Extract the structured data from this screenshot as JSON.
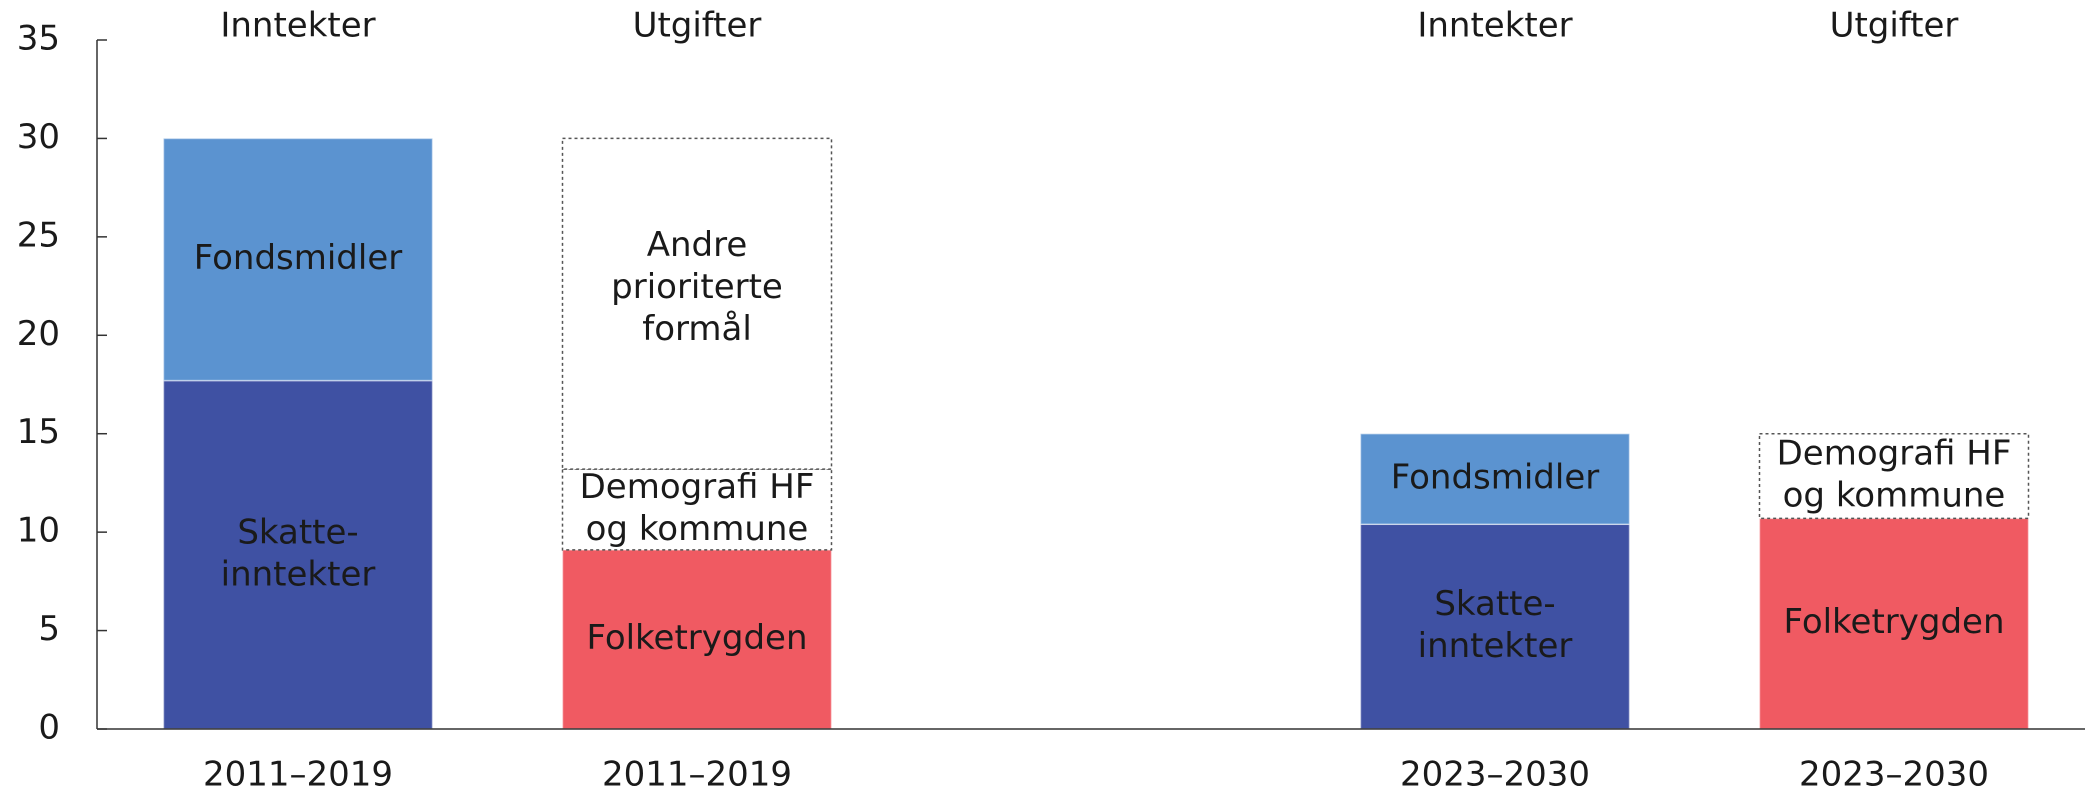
{
  "chart_data": {
    "type": "stacked_bar",
    "ylim": [
      0,
      35
    ],
    "yticks": [
      0,
      5,
      10,
      15,
      20,
      25,
      30,
      35
    ],
    "bars": [
      {
        "category": "2011–2019",
        "group_label": "Inntekter",
        "segments": [
          {
            "label": [
              "Skatte-",
              "inntekter"
            ],
            "value": 17.7,
            "color": "#3f51a3",
            "style": "solid"
          },
          {
            "label": [
              "Fondsmidler"
            ],
            "value": 12.3,
            "color": "#5b93d0",
            "style": "solid"
          }
        ]
      },
      {
        "category": "2011–2019",
        "group_label": "Utgifter",
        "segments": [
          {
            "label": [
              "Folketrygden"
            ],
            "value": 9.1,
            "color": "#f05a62",
            "style": "solid"
          },
          {
            "label": [
              "Demografi HF",
              "og kommune"
            ],
            "value": 4.1,
            "color": "#ffffff",
            "style": "dotted"
          },
          {
            "label": [
              "Andre",
              "prioriterte",
              "formål"
            ],
            "value": 16.8,
            "color": "#ffffff",
            "style": "dotted"
          }
        ]
      },
      {
        "category": "2023–2030",
        "group_label": "Inntekter",
        "segments": [
          {
            "label": [
              "Skatte-",
              "inntekter"
            ],
            "value": 10.4,
            "color": "#3f51a3",
            "style": "solid"
          },
          {
            "label": [
              "Fondsmidler"
            ],
            "value": 4.6,
            "color": "#5b93d0",
            "style": "solid"
          }
        ]
      },
      {
        "category": "2023–2030",
        "group_label": "Utgifter",
        "segments": [
          {
            "label": [
              "Folketrygden"
            ],
            "value": 10.7,
            "color": "#f05a62",
            "style": "solid"
          },
          {
            "label": [
              "Demografi HF",
              "og kommune"
            ],
            "value": 4.3,
            "color": "#ffffff",
            "style": "dotted"
          }
        ]
      }
    ]
  }
}
